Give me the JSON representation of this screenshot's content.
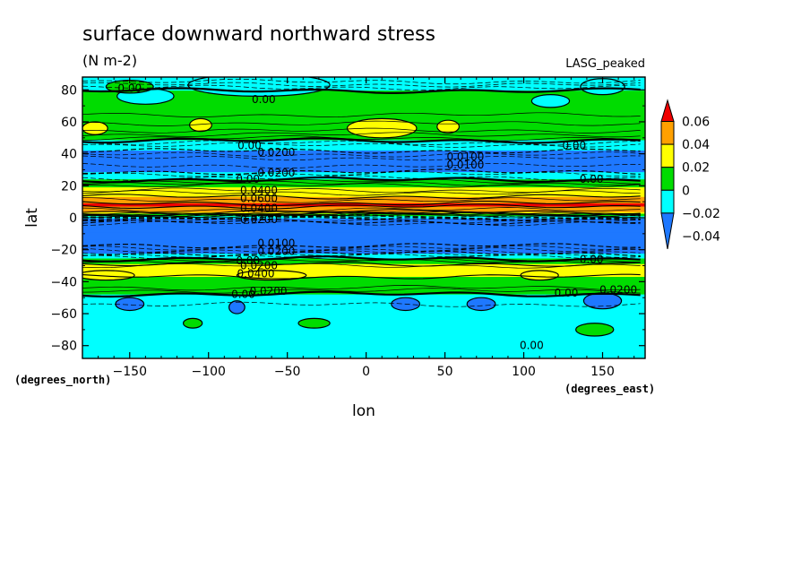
{
  "chart_data": {
    "type": "heatmap",
    "title": "surface downward northward stress",
    "units": "(N m-2)",
    "model": "LASG_peaked",
    "xlabel": "lon",
    "ylabel": "lat",
    "xunits": "(degrees_east)",
    "yunits": "(degrees_north)",
    "xlim": [
      -180,
      177
    ],
    "ylim": [
      -88,
      88
    ],
    "xticks": [
      -150,
      -100,
      -50,
      0,
      50,
      100,
      150
    ],
    "xticklabels": [
      "−150",
      "−100",
      "−50",
      "0",
      "50",
      "100",
      "150"
    ],
    "yticks": [
      -80,
      -60,
      -40,
      -20,
      0,
      20,
      40,
      60,
      80
    ],
    "yticklabels": [
      "−80",
      "−60",
      "−40",
      "−20",
      "0",
      "20",
      "40",
      "60",
      "80"
    ],
    "colorbar": {
      "levels": [
        -0.04,
        -0.02,
        0,
        0.02,
        0.04,
        0.06
      ],
      "labels": [
        "−0.04",
        "−0.02",
        "0",
        "0.02",
        "0.04",
        "0.06"
      ],
      "colors": [
        "#1e78ff",
        "#00ffff",
        "#00dc00",
        "#ffff00",
        "#ffa000",
        "#f00000"
      ]
    },
    "zonal_profile": [
      {
        "lat": 88,
        "value": -0.005
      },
      {
        "lat": 84,
        "value": -0.012
      },
      {
        "lat": 78,
        "value": 0.004
      },
      {
        "lat": 70,
        "value": 0.005
      },
      {
        "lat": 62,
        "value": 0.012
      },
      {
        "lat": 56,
        "value": 0.018
      },
      {
        "lat": 50,
        "value": 0.006
      },
      {
        "lat": 44,
        "value": -0.015
      },
      {
        "lat": 40,
        "value": -0.024
      },
      {
        "lat": 35,
        "value": -0.035
      },
      {
        "lat": 30,
        "value": -0.025
      },
      {
        "lat": 26,
        "value": -0.01
      },
      {
        "lat": 22,
        "value": 0.008
      },
      {
        "lat": 19,
        "value": 0.02
      },
      {
        "lat": 16,
        "value": 0.028
      },
      {
        "lat": 12,
        "value": 0.045
      },
      {
        "lat": 8,
        "value": 0.065
      },
      {
        "lat": 4,
        "value": 0.045
      },
      {
        "lat": 1,
        "value": 0.0
      },
      {
        "lat": -1,
        "value": -0.03
      },
      {
        "lat": -4,
        "value": -0.048
      },
      {
        "lat": -10,
        "value": -0.05
      },
      {
        "lat": -16,
        "value": -0.045
      },
      {
        "lat": -21,
        "value": -0.028
      },
      {
        "lat": -25,
        "value": -0.005
      },
      {
        "lat": -28,
        "value": 0.015
      },
      {
        "lat": -31,
        "value": 0.03
      },
      {
        "lat": -34,
        "value": 0.025
      },
      {
        "lat": -38,
        "value": 0.018
      },
      {
        "lat": -42,
        "value": 0.015
      },
      {
        "lat": -46,
        "value": 0.004
      },
      {
        "lat": -50,
        "value": -0.005
      },
      {
        "lat": -56,
        "value": -0.012
      },
      {
        "lat": -62,
        "value": -0.01
      },
      {
        "lat": -70,
        "value": -0.01
      },
      {
        "lat": -80,
        "value": -0.008
      },
      {
        "lat": -88,
        "value": -0.005
      }
    ],
    "contour_labels": [
      {
        "text": "0.00",
        "lon": -150,
        "lat": 81
      },
      {
        "text": "0.00",
        "lon": -65,
        "lat": 74
      },
      {
        "text": "0.00",
        "lon": -74,
        "lat": 45
      },
      {
        "text": "0.0200",
        "lon": -57,
        "lat": 41
      },
      {
        "text": "0.0100",
        "lon": 63,
        "lat": 38
      },
      {
        "text": "0.0100",
        "lon": 63,
        "lat": 33
      },
      {
        "text": "0.00",
        "lon": 132,
        "lat": 45
      },
      {
        "text": "0.0200",
        "lon": -57,
        "lat": 28
      },
      {
        "text": "0.00",
        "lon": -75,
        "lat": 24
      },
      {
        "text": "0.00",
        "lon": 143,
        "lat": 24
      },
      {
        "text": "0.0400",
        "lon": -68,
        "lat": 17
      },
      {
        "text": "0.0600",
        "lon": -68,
        "lat": 12
      },
      {
        "text": "0.0400",
        "lon": -68,
        "lat": 6
      },
      {
        "text": "0.0200",
        "lon": -68,
        "lat": -1
      },
      {
        "text": "0.0100",
        "lon": -57,
        "lat": -16
      },
      {
        "text": "0.0200",
        "lon": -57,
        "lat": -21
      },
      {
        "text": "0.00",
        "lon": -75,
        "lat": -27
      },
      {
        "text": "0.0200",
        "lon": -68,
        "lat": -30
      },
      {
        "text": "0.0400",
        "lon": -70,
        "lat": -35
      },
      {
        "text": "0.00",
        "lon": 143,
        "lat": -26
      },
      {
        "text": "0.0200",
        "lon": -62,
        "lat": -46
      },
      {
        "text": "0.00",
        "lon": -78,
        "lat": -48
      },
      {
        "text": "0.00",
        "lon": 127,
        "lat": -47
      },
      {
        "text": "0.0200",
        "lon": 160,
        "lat": -45
      },
      {
        "text": "0.00",
        "lon": 105,
        "lat": -80
      }
    ],
    "blobs": [
      {
        "lon": -172,
        "lat": 56,
        "rlon": 8,
        "rlat": 4,
        "value": 0.025
      },
      {
        "lon": -105,
        "lat": 58,
        "rlon": 7,
        "rlat": 4,
        "value": 0.025
      },
      {
        "lon": 10,
        "lat": 56,
        "rlon": 22,
        "rlat": 6,
        "value": 0.03
      },
      {
        "lon": 52,
        "lat": 57,
        "rlon": 7,
        "rlat": 4,
        "value": 0.025
      },
      {
        "lon": -68,
        "lat": 83,
        "rlon": 45,
        "rlat": 7,
        "value": -0.012
      },
      {
        "lon": -140,
        "lat": 76,
        "rlon": 18,
        "rlat": 5,
        "value": -0.015
      },
      {
        "lon": -150,
        "lat": 82,
        "rlon": 15,
        "rlat": 4,
        "value": 0.01
      },
      {
        "lon": 150,
        "lat": 82,
        "rlon": 14,
        "rlat": 5,
        "value": -0.012
      },
      {
        "lon": 117,
        "lat": 73,
        "rlon": 12,
        "rlat": 4,
        "value": -0.012
      },
      {
        "lon": -150,
        "lat": -54,
        "rlon": 9,
        "rlat": 4,
        "value": -0.03
      },
      {
        "lon": -82,
        "lat": -56,
        "rlon": 5,
        "rlat": 4,
        "value": -0.03
      },
      {
        "lon": 25,
        "lat": -54,
        "rlon": 9,
        "rlat": 4,
        "value": -0.03
      },
      {
        "lon": 73,
        "lat": -54,
        "rlon": 9,
        "rlat": 4,
        "value": -0.03
      },
      {
        "lon": 150,
        "lat": -52,
        "rlon": 12,
        "rlat": 5,
        "value": -0.03
      },
      {
        "lon": -33,
        "lat": -66,
        "rlon": 10,
        "rlat": 3,
        "value": 0.008
      },
      {
        "lon": 145,
        "lat": -70,
        "rlon": 12,
        "rlat": 4,
        "value": 0.008
      },
      {
        "lon": -110,
        "lat": -66,
        "rlon": 6,
        "rlat": 3,
        "value": 0.006
      },
      {
        "lon": -60,
        "lat": -36,
        "rlon": 22,
        "rlat": 3,
        "value": 0.028
      },
      {
        "lon": -165,
        "lat": -36,
        "rlon": 18,
        "rlat": 3,
        "value": 0.032
      },
      {
        "lon": 110,
        "lat": -36,
        "rlon": 12,
        "rlat": 3,
        "value": 0.028
      }
    ]
  }
}
